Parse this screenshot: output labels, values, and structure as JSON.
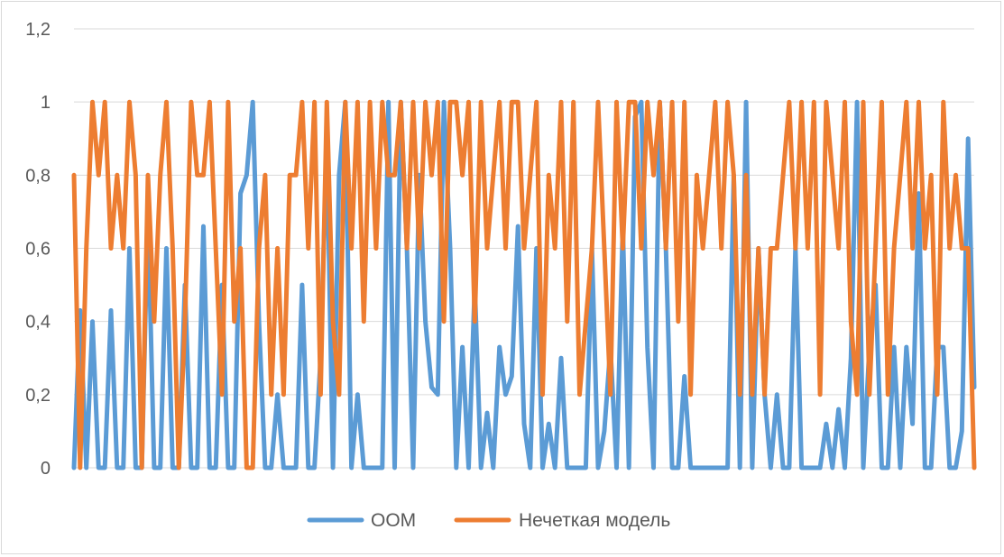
{
  "chart_data": {
    "type": "line",
    "title": "",
    "xlabel": "",
    "ylabel": "",
    "ylim": [
      0,
      1.2
    ],
    "ytick_labels": [
      "0",
      "0,2",
      "0,4",
      "0,6",
      "0,8",
      "1",
      "1,2"
    ],
    "grid": true,
    "legend_position": "bottom",
    "series": [
      {
        "name": "OOM",
        "color": "#5b9bd5",
        "values": [
          0,
          0.43,
          0,
          0.4,
          0,
          0,
          0.43,
          0,
          0,
          0.6,
          0,
          0,
          0.7,
          0,
          0,
          0.6,
          0,
          0,
          0.5,
          0,
          0,
          0.66,
          0,
          0,
          0.5,
          0,
          0,
          0.75,
          0.8,
          1,
          0.4,
          0,
          0,
          0.2,
          0,
          0,
          0,
          0.5,
          0,
          0,
          0.3,
          0.9,
          0,
          0.8,
          1,
          0,
          0.2,
          0,
          0,
          0,
          0,
          1,
          0,
          1,
          0.6,
          0,
          0.8,
          0.4,
          0.22,
          0.2,
          1,
          0.6,
          0,
          0.33,
          0,
          0.5,
          0,
          0.15,
          0,
          0.33,
          0.2,
          0.25,
          0.66,
          0.12,
          0,
          0.6,
          0,
          0.12,
          0,
          0.3,
          0,
          0,
          0,
          0,
          0.6,
          0,
          0.1,
          0.33,
          0,
          0.66,
          0,
          0.96,
          1,
          0.33,
          0,
          1,
          0.6,
          0,
          0,
          0.25,
          0,
          0,
          0,
          0,
          0,
          0,
          0,
          0.8,
          0,
          1,
          0,
          0.6,
          0.2,
          0,
          0.2,
          0,
          0,
          0.6,
          0,
          0,
          0,
          0,
          0.12,
          0,
          0.16,
          0,
          0.3,
          1,
          0,
          0.33,
          0.5,
          0,
          0,
          0.33,
          0,
          0.33,
          0.12,
          0.75,
          0,
          0,
          0.33,
          0.33,
          0,
          0,
          0.1,
          0.9,
          0.22
        ]
      },
      {
        "name": "Нечеткая модель",
        "color": "#ed7d31",
        "values": [
          0.8,
          0,
          0.6,
          1,
          0.8,
          1,
          0.6,
          0.8,
          0.6,
          1,
          0.8,
          0,
          0.8,
          0.4,
          0.8,
          1,
          0.6,
          0,
          0.4,
          1,
          0.8,
          0.8,
          1,
          0.6,
          0.2,
          1,
          0.4,
          0.6,
          0,
          0,
          0.6,
          0.8,
          0.2,
          0.6,
          0.2,
          0.8,
          0.8,
          1,
          0.6,
          1,
          0.2,
          1,
          0.4,
          0.2,
          1,
          0.6,
          1,
          0.4,
          1,
          0.6,
          1,
          0.8,
          0.8,
          1,
          0.6,
          1,
          0.6,
          1,
          0.8,
          1,
          0.4,
          1,
          1,
          0.8,
          1,
          0.4,
          1,
          0.6,
          0.8,
          1,
          0.6,
          1,
          1,
          0.6,
          0.8,
          1,
          0.2,
          0.8,
          0.6,
          1,
          0.4,
          1,
          0.2,
          0.4,
          0.6,
          1,
          0.6,
          0.2,
          1,
          0.6,
          1,
          1,
          0.6,
          1,
          0.8,
          1,
          0.6,
          1,
          0.4,
          1,
          0.2,
          0.8,
          0.6,
          0.8,
          1,
          0.6,
          1,
          0.8,
          0.2,
          0.8,
          0.2,
          0.6,
          0.2,
          0.6,
          0.6,
          0.8,
          1,
          0.6,
          1,
          0.6,
          1,
          0.2,
          1,
          0.8,
          0.6,
          1,
          0.4,
          0.2,
          1,
          0.2,
          0.6,
          1,
          0.2,
          0.6,
          0.8,
          1,
          0.6,
          1,
          0.6,
          0.8,
          0.2,
          1,
          0.6,
          0.8,
          0.6,
          0.6,
          0
        ]
      }
    ]
  }
}
